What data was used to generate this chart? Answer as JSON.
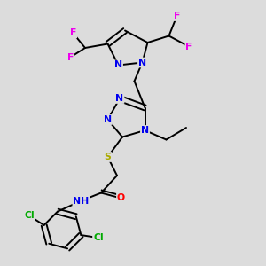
{
  "bg_color": "#dcdcdc",
  "bond_color": "#000000",
  "bond_width": 1.4,
  "atom_colors": {
    "N": "#0000ee",
    "O": "#ff0000",
    "S": "#aaaa00",
    "F": "#ee00ee",
    "Cl": "#00aa00",
    "C": "#000000"
  },
  "figsize": [
    3.0,
    3.0
  ],
  "dpi": 100
}
